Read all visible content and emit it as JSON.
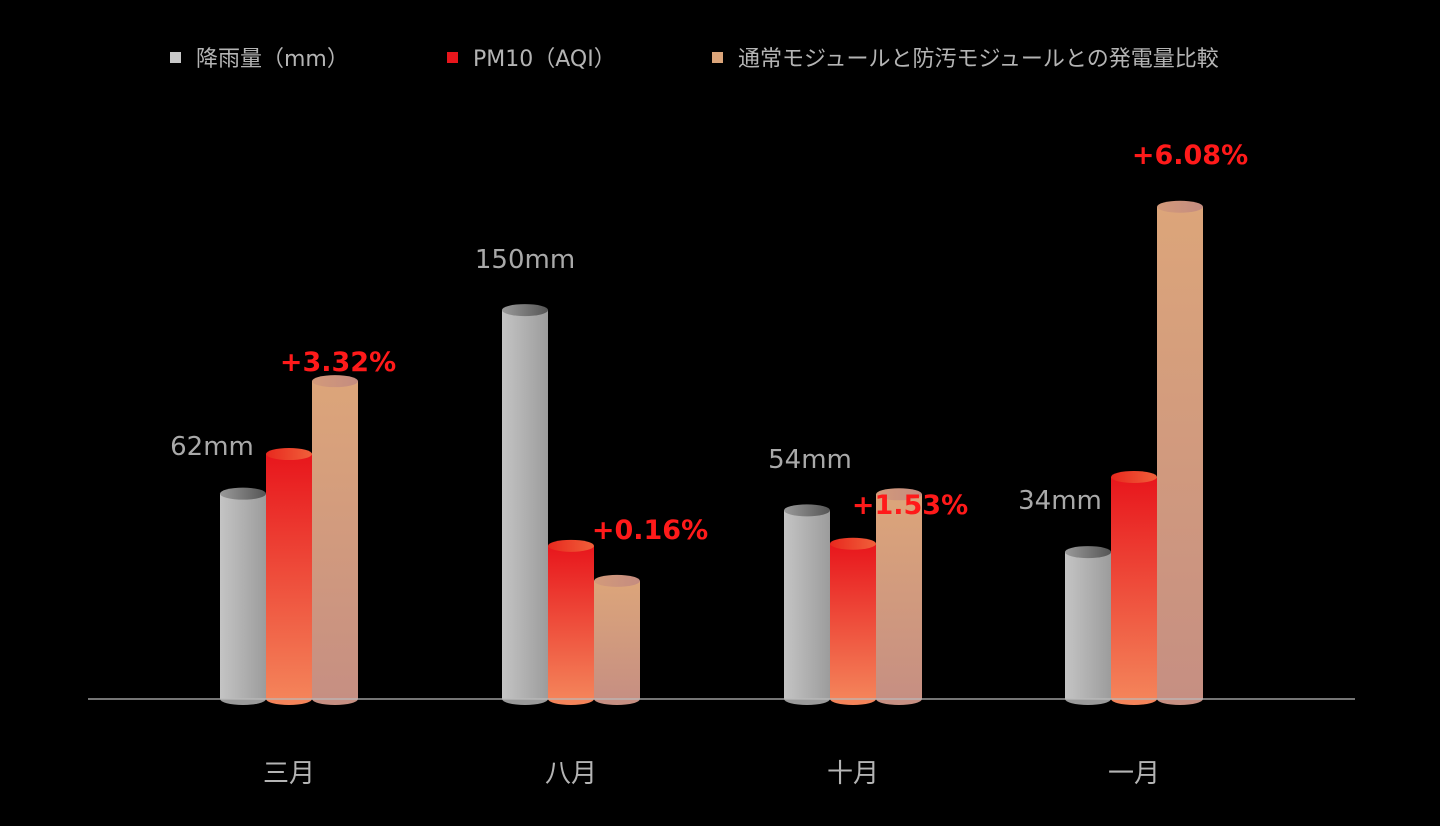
{
  "chart_data": {
    "type": "bar",
    "title": "",
    "xlabel": "",
    "ylabel": "",
    "grid": false,
    "legend_position": "top",
    "categories": [
      "三月",
      "八月",
      "十月",
      "一月"
    ],
    "series": [
      {
        "name": "降雨量（mm）",
        "values": [
          62,
          150,
          54,
          34
        ],
        "labels": [
          "62mm",
          "150mm",
          "54mm",
          "34mm"
        ],
        "color": "#b8b8b8"
      },
      {
        "name": "PM10（AQI）",
        "values": [
          81,
          37,
          38,
          70
        ],
        "labels": [],
        "color": "#ee2a24"
      },
      {
        "name": "通常モジュールと防汚モジュールとの発電量比較",
        "values": [
          3.32,
          0.16,
          1.53,
          6.08
        ],
        "labels": [
          "+3.32%",
          "+0.16%",
          "+1.53%",
          "+6.08%"
        ],
        "color": "#d9a07a"
      }
    ],
    "label_color_rain": "#a9a9a9",
    "label_color_percent": "#ff1a1a",
    "background": "#000000"
  }
}
